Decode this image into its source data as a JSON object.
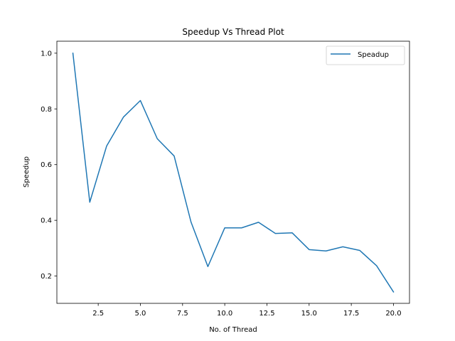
{
  "chart_data": {
    "type": "line",
    "title": "Speedup Vs Thread Plot",
    "xlabel": "No. of Thread",
    "ylabel": "Speedup",
    "xlim": [
      0.05,
      20.95
    ],
    "ylim": [
      0.102,
      1.043
    ],
    "xticks": [
      2.5,
      5.0,
      7.5,
      10.0,
      12.5,
      15.0,
      17.5,
      20.0
    ],
    "xtick_labels": [
      "2.5",
      "5.0",
      "7.5",
      "10.0",
      "12.5",
      "15.0",
      "17.5",
      "20.0"
    ],
    "yticks": [
      0.2,
      0.4,
      0.6,
      0.8,
      1.0
    ],
    "ytick_labels": [
      "0.2",
      "0.4",
      "0.6",
      "0.8",
      "1.0"
    ],
    "grid": false,
    "legend_position": "top-right",
    "series": [
      {
        "name": "Speadup",
        "color": "#1f77b4",
        "x": [
          1,
          2,
          3,
          4,
          5,
          6,
          7,
          8,
          9,
          10,
          11,
          12,
          13,
          14,
          15,
          16,
          17,
          18,
          19,
          20
        ],
        "y": [
          1.0,
          0.465,
          0.667,
          0.771,
          0.83,
          0.693,
          0.631,
          0.394,
          0.234,
          0.373,
          0.373,
          0.393,
          0.353,
          0.355,
          0.295,
          0.29,
          0.305,
          0.292,
          0.237,
          0.143
        ]
      }
    ]
  }
}
